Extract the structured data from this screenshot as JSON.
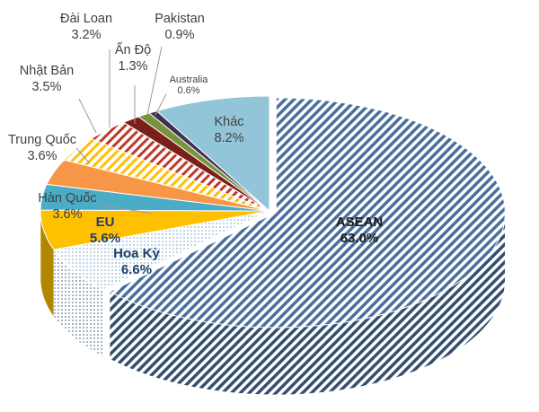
{
  "chart_data": {
    "type": "pie",
    "slices": [
      {
        "name": "ASEAN",
        "value": 63.0,
        "label": "63.0%",
        "color": "#4a6f9c",
        "pattern": "diag"
      },
      {
        "name": "Hoa Kỳ",
        "value": 6.6,
        "label": "6.6%",
        "color": "#8fb7d6",
        "pattern": "dots"
      },
      {
        "name": "EU",
        "value": 5.6,
        "label": "5.6%",
        "color": "#ffc000",
        "pattern": "solid"
      },
      {
        "name": "Hàn Quốc",
        "value": 3.6,
        "label": "3.6%",
        "color": "#4bacc6",
        "pattern": "solid"
      },
      {
        "name": "Trung Quốc",
        "value": 3.6,
        "label": "3.6%",
        "color": "#f79646",
        "pattern": "solid"
      },
      {
        "name": "Nhật Bản",
        "value": 3.5,
        "label": "3.5%",
        "color": "#ffc000",
        "pattern": "diag-light"
      },
      {
        "name": "Đài Loan",
        "value": 3.2,
        "label": "3.2%",
        "color": "#c0392b",
        "pattern": "diag-light"
      },
      {
        "name": "Ấn Độ",
        "value": 1.3,
        "label": "1.3%",
        "color": "#7a1f1a",
        "pattern": "solid"
      },
      {
        "name": "Pakistan",
        "value": 0.9,
        "label": "0.9%",
        "color": "#77933c",
        "pattern": "solid"
      },
      {
        "name": "Australia",
        "value": 0.6,
        "label": "0.6%",
        "color": "#403152",
        "pattern": "solid"
      },
      {
        "name": "Khác",
        "value": 8.2,
        "label": "8.2%",
        "color": "#93c5d9",
        "pattern": "solid"
      }
    ],
    "title": "",
    "legend": "none"
  }
}
